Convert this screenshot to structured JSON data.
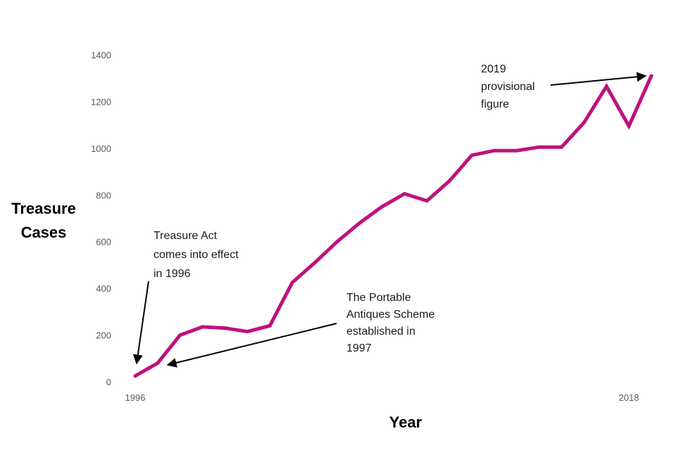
{
  "chart_data": {
    "type": "line",
    "title": "",
    "xlabel": "Year",
    "ylabel": [
      "Treasure",
      "Cases"
    ],
    "ylim": [
      0,
      1400
    ],
    "yticks": [
      "0",
      "200",
      "400",
      "600",
      "800",
      "1000",
      "1200",
      "1400"
    ],
    "xtick_labels": [
      {
        "x": 1996,
        "label": "1996"
      },
      {
        "x": 2018,
        "label": "2018"
      }
    ],
    "series": [
      {
        "name": "Treasure Cases",
        "color": "#C0117F",
        "x": [
          1996,
          1997,
          1998,
          1999,
          2000,
          2001,
          2002,
          2003,
          2004,
          2005,
          2006,
          2007,
          2008,
          2009,
          2010,
          2011,
          2012,
          2013,
          2014,
          2015,
          2016,
          2017,
          2018,
          2019
        ],
        "values": [
          25,
          80,
          200,
          235,
          230,
          215,
          240,
          425,
          510,
          600,
          680,
          750,
          805,
          775,
          860,
          970,
          990,
          990,
          1005,
          1005,
          1110,
          1265,
          1095,
          1310
        ]
      }
    ],
    "annotations": [
      {
        "id": "treasure-act",
        "lines": [
          "Treasure Act",
          "comes into effect",
          "in 1996"
        ],
        "points_to": [
          1996,
          25
        ]
      },
      {
        "id": "pas",
        "lines": [
          "The Portable",
          "Antiques Scheme",
          "established in",
          "1997"
        ],
        "points_to": [
          1997,
          80
        ]
      },
      {
        "id": "provisional",
        "lines": [
          "2019",
          "provisional",
          "figure"
        ],
        "points_to": [
          2019,
          1310
        ]
      }
    ]
  }
}
